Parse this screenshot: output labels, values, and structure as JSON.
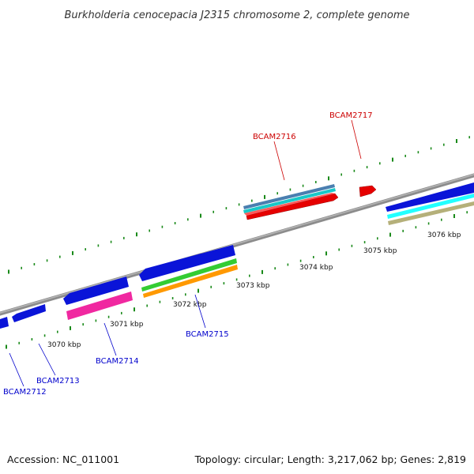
{
  "title": "Burkholderia cenocepacia J2315 chromosome 2, complete genome",
  "footer": {
    "accession": "Accession: NC_011001",
    "summary": "Topology: circular; Length: 3,217,062 bp; Genes: 2,819"
  },
  "colors": {
    "backbone": "#8a8a8a",
    "tick": "#1a8a1a",
    "label_forward": "#cc0000",
    "label_reverse": "#0000cc"
  },
  "ticks": [
    {
      "kbp": 3070,
      "label": "3070 kbp"
    },
    {
      "kbp": 3071,
      "label": "3071 kbp"
    },
    {
      "kbp": 3072,
      "label": "3072 kbp"
    },
    {
      "kbp": 3073,
      "label": "3073 kbp"
    },
    {
      "kbp": 3074,
      "label": "3074 kbp"
    },
    {
      "kbp": 3075,
      "label": "3075 kbp"
    },
    {
      "kbp": 3076,
      "label": "3076 kbp"
    }
  ],
  "labels": [
    {
      "text": "BCAM2712",
      "strand": "reverse"
    },
    {
      "text": "BCAM2713",
      "strand": "reverse"
    },
    {
      "text": "BCAM2714",
      "strand": "reverse"
    },
    {
      "text": "BCAM2715",
      "strand": "reverse"
    },
    {
      "text": "BCAM2716",
      "strand": "forward"
    },
    {
      "text": "BCAM2717",
      "strand": "forward"
    }
  ]
}
